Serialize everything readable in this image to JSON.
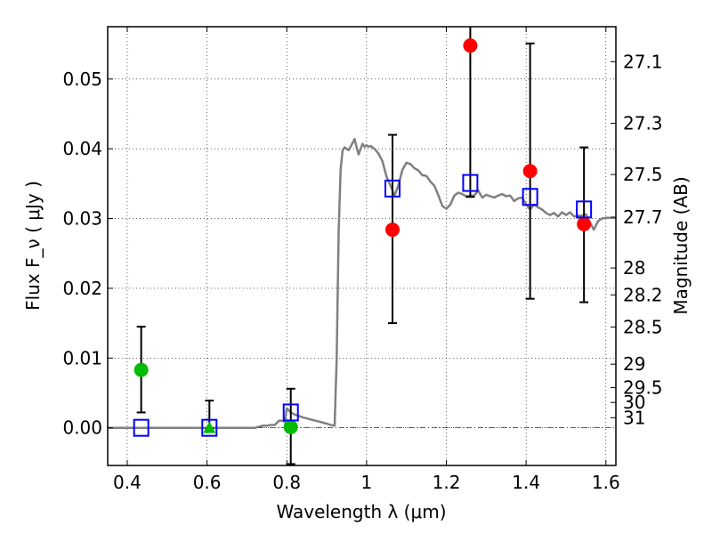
{
  "chart_data": {
    "type": "scatter",
    "title": "",
    "xlabel": "Wavelength  λ (μm)",
    "ylabel": "Flux  F_ν  ( μJy )",
    "ylabel_right": "Magnitude (AB)",
    "xlim": [
      0.351,
      1.625
    ],
    "ylim": [
      -0.0054,
      0.0575
    ],
    "grid": true,
    "x_ticks": [
      0.4,
      0.6,
      0.8,
      1.0,
      1.2,
      1.4,
      1.6
    ],
    "x_tick_labels": [
      "0.4",
      "0.6",
      "0.8",
      "1",
      "1.2",
      "1.4",
      "1.6"
    ],
    "y_ticks": [
      0.0,
      0.01,
      0.02,
      0.03,
      0.04,
      0.05
    ],
    "y_tick_labels": [
      "0.00",
      "0.01",
      "0.02",
      "0.03",
      "0.04",
      "0.05"
    ],
    "right_ticks": {
      "zeropoint_ab": 23.9,
      "magnitudes": [
        27.1,
        27.3,
        27.5,
        27.7,
        28,
        28.2,
        28.5,
        29,
        29.5,
        30,
        31
      ],
      "labels": [
        "27.1",
        "27.3",
        "27.5",
        "27.7",
        "28",
        "28.2",
        "28.5",
        "29",
        "29.5",
        "30",
        "31"
      ]
    },
    "series": [
      {
        "name": "model-spectrum",
        "kind": "line",
        "color": "#808080",
        "x": [
          0.351,
          0.4,
          0.5,
          0.6,
          0.7,
          0.72,
          0.74,
          0.75,
          0.76,
          0.77,
          0.78,
          0.79,
          0.795,
          0.8,
          0.81,
          0.82,
          0.84,
          0.86,
          0.88,
          0.9,
          0.91,
          0.92,
          0.925,
          0.93,
          0.935,
          0.94,
          0.945,
          0.95,
          0.955,
          0.96,
          0.97,
          0.975,
          0.98,
          0.985,
          0.99,
          0.995,
          1.0,
          1.005,
          1.01,
          1.02,
          1.03,
          1.04,
          1.05,
          1.06,
          1.07,
          1.08,
          1.09,
          1.1,
          1.11,
          1.12,
          1.13,
          1.14,
          1.15,
          1.16,
          1.17,
          1.18,
          1.19,
          1.2,
          1.21,
          1.22,
          1.23,
          1.24,
          1.25,
          1.26,
          1.27,
          1.28,
          1.29,
          1.3,
          1.31,
          1.32,
          1.33,
          1.34,
          1.35,
          1.36,
          1.37,
          1.38,
          1.39,
          1.4,
          1.41,
          1.42,
          1.43,
          1.44,
          1.45,
          1.46,
          1.47,
          1.48,
          1.49,
          1.5,
          1.51,
          1.52,
          1.53,
          1.54,
          1.55,
          1.56,
          1.57,
          1.58,
          1.59,
          1.6,
          1.625
        ],
        "y": [
          0.0,
          0.0,
          0.0,
          0.0,
          0.0,
          0.0,
          0.0003,
          0.0003,
          0.0004,
          0.0004,
          0.001,
          0.001,
          0.0008,
          0.0028,
          0.0022,
          0.0019,
          0.0015,
          0.0012,
          0.0009,
          0.0006,
          0.0004,
          0.0003,
          0.01,
          0.028,
          0.037,
          0.0398,
          0.0402,
          0.04,
          0.0398,
          0.0403,
          0.0414,
          0.0402,
          0.0392,
          0.04,
          0.0407,
          0.0403,
          0.0405,
          0.0403,
          0.0404,
          0.04,
          0.0393,
          0.0382,
          0.036,
          0.0347,
          0.0333,
          0.0348,
          0.037,
          0.038,
          0.0378,
          0.0372,
          0.0369,
          0.0362,
          0.0361,
          0.0353,
          0.0347,
          0.0333,
          0.0318,
          0.0314,
          0.032,
          0.0333,
          0.0337,
          0.0335,
          0.0332,
          0.0333,
          0.0333,
          0.034,
          0.033,
          0.0334,
          0.0332,
          0.033,
          0.0333,
          0.0335,
          0.0332,
          0.0333,
          0.0325,
          0.0329,
          0.033,
          0.032,
          0.0313,
          0.032,
          0.0316,
          0.0313,
          0.0308,
          0.0305,
          0.0308,
          0.0303,
          0.0309,
          0.0305,
          0.0309,
          0.0303,
          0.0304,
          0.0304,
          0.0306,
          0.0294,
          0.0284,
          0.0296,
          0.03,
          0.0301,
          0.0301
        ]
      },
      {
        "name": "observed-detections-red",
        "kind": "errorbar-circle",
        "color": "#ff0000",
        "x": [
          1.065,
          1.26,
          1.41,
          1.545
        ],
        "y": [
          0.0284,
          0.0548,
          0.0368,
          0.0292
        ],
        "yerr_low": [
          0.015,
          0.0331,
          0.0185,
          0.018
        ],
        "yerr_high": [
          0.042,
          0.06,
          0.0551,
          0.0402
        ]
      },
      {
        "name": "observed-green",
        "kind": "errorbar-circle",
        "color": "#00bb00",
        "x": [
          0.435,
          0.81
        ],
        "y": [
          0.0083,
          0.0001
        ],
        "yerr_low": [
          0.0022,
          -0.0052
        ],
        "yerr_high": [
          0.0145,
          0.0056
        ]
      },
      {
        "name": "observed-green-triangle",
        "kind": "errorbar-triangle",
        "color": "#00bb00",
        "x": [
          0.606
        ],
        "y": [
          -0.0001
        ],
        "yerr_low": [
          -0.0001
        ],
        "yerr_high": [
          0.0039
        ]
      },
      {
        "name": "model-photometry",
        "kind": "open-square",
        "color": "#0000ff",
        "x": [
          0.435,
          0.606,
          0.81,
          1.065,
          1.26,
          1.41,
          1.545
        ],
        "y": [
          0.0,
          0.0,
          0.0022,
          0.0343,
          0.0351,
          0.0331,
          0.0313
        ]
      }
    ]
  }
}
